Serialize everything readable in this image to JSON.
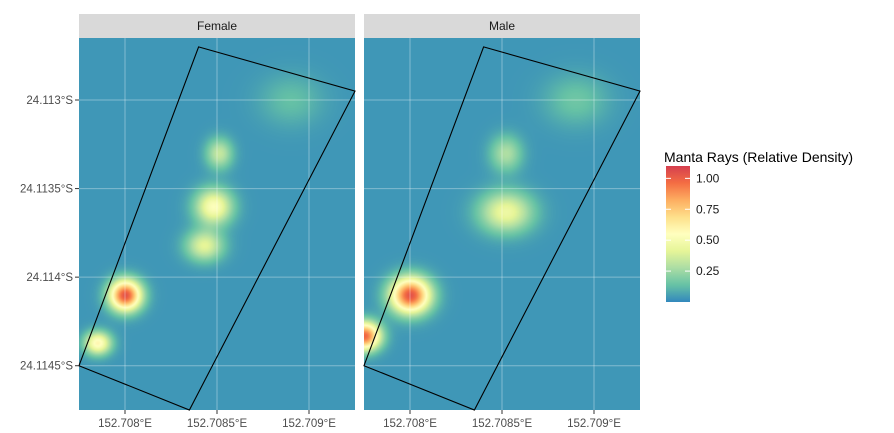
{
  "chart_data": {
    "type": "heatmap",
    "title": "",
    "xlabel": "",
    "ylabel": "",
    "xlim": [
      152.70775,
      152.70925
    ],
    "ylim": [
      -24.11475,
      -24.11265
    ],
    "x_ticks": [
      {
        "value": 152.708,
        "label": "152.708°E"
      },
      {
        "value": 152.7085,
        "label": "152.7085°E"
      },
      {
        "value": 152.709,
        "label": "152.709°E"
      }
    ],
    "y_ticks": [
      {
        "value": -24.113,
        "label": "24.113°S"
      },
      {
        "value": -24.1135,
        "label": "24.1135°S"
      },
      {
        "value": -24.114,
        "label": "24.114°S"
      },
      {
        "value": -24.1145,
        "label": "24.1145°S"
      }
    ],
    "facets": [
      {
        "label": "Female",
        "survey_polygon": [
          [
            152.70775,
            -24.1145
          ],
          [
            152.70835,
            -24.11475
          ],
          [
            152.70925,
            -24.11295
          ],
          [
            152.7084,
            -24.1127
          ]
        ],
        "hotspots": [
          {
            "lon": 152.708,
            "lat": -24.1141,
            "density": 1.0,
            "sx": 6e-05,
            "sy": 6e-05
          },
          {
            "lon": 152.70785,
            "lat": -24.11437,
            "density": 0.55,
            "sx": 5e-05,
            "sy": 4.5e-05
          },
          {
            "lon": 152.70848,
            "lat": -24.1136,
            "density": 0.5,
            "sx": 7e-05,
            "sy": 7e-05
          },
          {
            "lon": 152.70843,
            "lat": -24.11382,
            "density": 0.38,
            "sx": 7e-05,
            "sy": 6e-05
          },
          {
            "lon": 152.70851,
            "lat": -24.1133,
            "density": 0.3,
            "sx": 5e-05,
            "sy": 6e-05
          },
          {
            "lon": 152.7089,
            "lat": -24.113,
            "density": 0.1,
            "sx": 0.00012,
            "sy": 0.0001
          }
        ]
      },
      {
        "label": "Male",
        "survey_polygon": [
          [
            152.70775,
            -24.1145
          ],
          [
            152.70835,
            -24.11475
          ],
          [
            152.70925,
            -24.11295
          ],
          [
            152.7084,
            -24.1127
          ]
        ],
        "hotspots": [
          {
            "lon": 152.708,
            "lat": -24.1141,
            "density": 1.0,
            "sx": 7.5e-05,
            "sy": 7e-05
          },
          {
            "lon": 152.70775,
            "lat": -24.11433,
            "density": 0.95,
            "sx": 6e-05,
            "sy": 5.5e-05
          },
          {
            "lon": 152.70852,
            "lat": -24.11363,
            "density": 0.42,
            "sx": 0.0001,
            "sy": 8e-05
          },
          {
            "lon": 152.70852,
            "lat": -24.1133,
            "density": 0.25,
            "sx": 6e-05,
            "sy": 7e-05
          },
          {
            "lon": 152.7089,
            "lat": -24.113,
            "density": 0.12,
            "sx": 0.00012,
            "sy": 0.0001
          }
        ]
      }
    ],
    "legend": {
      "title": "Manta Rays (Relative Density)",
      "position": "right",
      "breaks": [
        1.0,
        0.75,
        0.5,
        0.25
      ],
      "labels": [
        "1.00",
        "0.75",
        "0.50",
        "0.25"
      ],
      "range": [
        0.0,
        1.1
      ]
    },
    "colormap": [
      "#3288bd",
      "#66c2a5",
      "#abdda4",
      "#e6f598",
      "#ffffbf",
      "#fee08b",
      "#fdae61",
      "#f46d43",
      "#d53e4f"
    ],
    "grid": true
  },
  "colors": {
    "strip_background": "#d9d9d9",
    "grid_line": "#ffffff",
    "polygon_stroke": "#000000",
    "tick_mark": "#333333"
  }
}
